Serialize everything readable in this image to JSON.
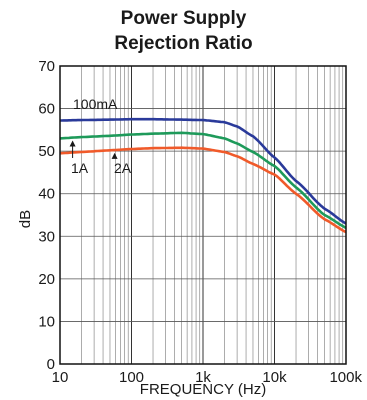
{
  "chart_data": {
    "type": "line",
    "title_lines": [
      "Power Supply",
      "Rejection Ratio"
    ],
    "xlabel": "FREQUENCY (Hz)",
    "ylabel": "dB",
    "x_scale": "log",
    "xlim": [
      10,
      100000
    ],
    "ylim": [
      0,
      70
    ],
    "x_ticks": [
      10,
      100,
      1000,
      10000,
      100000
    ],
    "x_tick_labels": [
      "10",
      "100",
      "1k",
      "10k",
      "100k"
    ],
    "y_ticks": [
      0,
      10,
      20,
      30,
      40,
      50,
      60,
      70
    ],
    "y_tick_labels": [
      "0",
      "10",
      "20",
      "30",
      "40",
      "50",
      "60",
      "70"
    ],
    "grid": true,
    "series": [
      {
        "name": "100mA",
        "color": "#2a3a9a",
        "x": [
          10,
          20,
          50,
          100,
          200,
          500,
          1000,
          2000,
          3000,
          5000,
          10000,
          20000,
          50000,
          100000
        ],
        "y": [
          57.2,
          57.3,
          57.4,
          57.5,
          57.5,
          57.4,
          57.3,
          56.8,
          55.8,
          53.5,
          48.5,
          43.0,
          36.5,
          33.0
        ]
      },
      {
        "name": "1A",
        "color": "#1e9a5a",
        "x": [
          10,
          20,
          50,
          100,
          200,
          500,
          1000,
          2000,
          3000,
          5000,
          10000,
          20000,
          50000,
          100000
        ],
        "y": [
          53.0,
          53.3,
          53.6,
          53.9,
          54.1,
          54.3,
          54.0,
          53.0,
          51.8,
          49.8,
          46.5,
          41.5,
          35.0,
          32.0
        ]
      },
      {
        "name": "2A",
        "color": "#f05a2a",
        "x": [
          10,
          20,
          50,
          100,
          200,
          500,
          1000,
          2000,
          3000,
          5000,
          10000,
          20000,
          50000,
          100000
        ],
        "y": [
          49.5,
          49.8,
          50.2,
          50.5,
          50.7,
          50.8,
          50.6,
          49.8,
          48.8,
          47.0,
          44.5,
          40.0,
          34.0,
          31.0
        ]
      }
    ],
    "annotations": [
      {
        "text": "100mA",
        "series": "100mA"
      },
      {
        "text": "1A",
        "series": "1A"
      },
      {
        "text": "2A",
        "series": "2A"
      }
    ]
  }
}
